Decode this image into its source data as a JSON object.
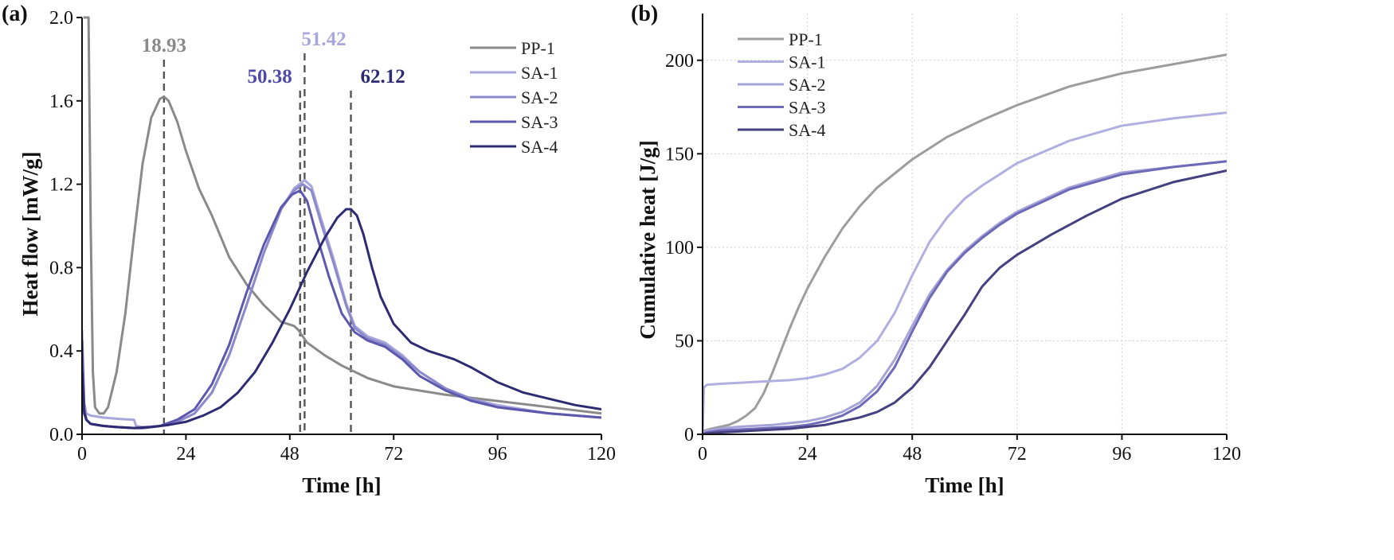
{
  "chart_data": [
    {
      "panel": "(a)",
      "type": "line",
      "xlabel": "Time [h]",
      "ylabel": "Heat flow [mW/g]",
      "xlim": [
        0,
        120
      ],
      "ylim": [
        0,
        2.0
      ],
      "xticks": [
        0,
        24,
        48,
        72,
        96,
        120
      ],
      "yticks": [
        0.0,
        0.4,
        0.8,
        1.2,
        1.6,
        2.0
      ],
      "ytick_labels": [
        "0.0",
        "0.4",
        "0.8",
        "1.2",
        "1.6",
        "2.0"
      ],
      "grid": false,
      "legend_position": "top-right",
      "series": [
        {
          "name": "PP-1",
          "color": "#8a8a8a",
          "x": [
            0.3,
            1.0,
            1.5,
            2.0,
            2.5,
            3.0,
            4.0,
            5.0,
            6.0,
            8.0,
            10.0,
            12.0,
            14.0,
            16.0,
            18.0,
            18.93,
            20.0,
            22.0,
            24.0,
            27.0,
            30.0,
            34.0,
            38.0,
            42.0,
            46.0,
            49.0,
            50.0,
            52.0,
            56.0,
            60.0,
            66.0,
            72.0,
            84.0,
            96.0,
            108.0,
            120.0
          ],
          "y": [
            2.0,
            2.0,
            2.0,
            1.0,
            0.3,
            0.13,
            0.1,
            0.1,
            0.13,
            0.3,
            0.58,
            0.95,
            1.3,
            1.52,
            1.61,
            1.62,
            1.6,
            1.5,
            1.36,
            1.18,
            1.05,
            0.85,
            0.72,
            0.62,
            0.54,
            0.52,
            0.5,
            0.44,
            0.38,
            0.33,
            0.27,
            0.23,
            0.19,
            0.16,
            0.13,
            0.1
          ]
        },
        {
          "name": "SA-1",
          "color": "#a8a6db",
          "x": [
            0.0,
            0.5,
            1.0,
            2.0,
            5.0,
            8.0,
            10.0,
            12.0,
            12.5,
            14.0,
            18.0,
            22.0,
            26.0,
            30.0,
            34.0,
            38.0,
            42.0,
            46.0,
            49.0,
            51.42,
            53.0,
            55.0,
            58.0,
            61.0,
            63.0,
            66.0,
            70.0,
            74.0,
            78.0,
            84.0,
            90.0,
            96.0,
            108.0,
            120.0
          ],
          "y": [
            0.5,
            0.15,
            0.1,
            0.09,
            0.08,
            0.075,
            0.072,
            0.07,
            0.04,
            0.035,
            0.04,
            0.06,
            0.1,
            0.2,
            0.38,
            0.62,
            0.87,
            1.08,
            1.18,
            1.22,
            1.19,
            1.05,
            0.85,
            0.63,
            0.52,
            0.47,
            0.44,
            0.38,
            0.3,
            0.22,
            0.17,
            0.14,
            0.1,
            0.08
          ]
        },
        {
          "name": "SA-2",
          "color": "#8c89cc",
          "x": [
            0.0,
            0.5,
            1.0,
            2.0,
            5.0,
            8.0,
            12.0,
            14.0,
            18.0,
            22.0,
            26.0,
            30.0,
            34.0,
            38.0,
            42.0,
            46.0,
            49.0,
            51.0,
            53.0,
            55.0,
            58.0,
            61.0,
            63.0,
            66.0,
            70.0,
            74.0,
            78.0,
            84.0,
            90.0,
            96.0,
            108.0,
            120.0
          ],
          "y": [
            0.45,
            0.12,
            0.07,
            0.05,
            0.04,
            0.035,
            0.03,
            0.03,
            0.04,
            0.06,
            0.1,
            0.2,
            0.38,
            0.62,
            0.87,
            1.08,
            1.17,
            1.2,
            1.17,
            1.03,
            0.83,
            0.62,
            0.51,
            0.46,
            0.43,
            0.37,
            0.3,
            0.22,
            0.17,
            0.13,
            0.1,
            0.08
          ]
        },
        {
          "name": "SA-3",
          "color": "#5d58ad",
          "x": [
            0.0,
            0.5,
            1.0,
            2.0,
            5.0,
            8.0,
            12.0,
            14.0,
            18.0,
            22.0,
            26.0,
            30.0,
            34.0,
            38.0,
            42.0,
            46.0,
            48.5,
            50.38,
            52.0,
            54.0,
            57.0,
            60.0,
            63.0,
            66.0,
            70.0,
            74.0,
            78.0,
            84.0,
            90.0,
            96.0,
            108.0,
            120.0
          ],
          "y": [
            0.45,
            0.12,
            0.07,
            0.05,
            0.04,
            0.035,
            0.03,
            0.03,
            0.04,
            0.07,
            0.12,
            0.24,
            0.43,
            0.68,
            0.91,
            1.09,
            1.15,
            1.17,
            1.12,
            0.97,
            0.76,
            0.58,
            0.49,
            0.45,
            0.42,
            0.36,
            0.28,
            0.21,
            0.16,
            0.13,
            0.1,
            0.08
          ]
        },
        {
          "name": "SA-4",
          "color": "#2f2b72",
          "x": [
            0.0,
            0.5,
            1.0,
            2.0,
            5.0,
            8.0,
            12.0,
            16.0,
            20.0,
            24.0,
            28.0,
            32.0,
            36.0,
            40.0,
            44.0,
            48.0,
            52.0,
            56.0,
            59.0,
            61.0,
            62.12,
            63.5,
            65.0,
            67.0,
            69.0,
            72.0,
            76.0,
            80.0,
            86.0,
            90.0,
            96.0,
            102.0,
            108.0,
            114.0,
            120.0
          ],
          "y": [
            0.3,
            0.1,
            0.07,
            0.05,
            0.04,
            0.035,
            0.03,
            0.035,
            0.045,
            0.06,
            0.09,
            0.13,
            0.2,
            0.3,
            0.44,
            0.6,
            0.78,
            0.94,
            1.04,
            1.08,
            1.08,
            1.05,
            0.96,
            0.8,
            0.66,
            0.53,
            0.44,
            0.4,
            0.36,
            0.32,
            0.25,
            0.2,
            0.17,
            0.14,
            0.12
          ]
        }
      ],
      "annotations": [
        {
          "text": "18.93",
          "x": 18.93,
          "color": "#8a8a8a"
        },
        {
          "text": "50.38",
          "x": 50.38,
          "color": "#4f4aa8"
        },
        {
          "text": "51.42",
          "x": 51.42,
          "color": "#a8a6db"
        },
        {
          "text": "62.12",
          "x": 62.12,
          "color": "#2f2b72"
        }
      ]
    },
    {
      "panel": "(b)",
      "type": "line",
      "xlabel": "Time [h]",
      "ylabel": "Cumulative heat [J/g]",
      "xlim": [
        0,
        120
      ],
      "ylim": [
        0,
        225
      ],
      "xticks": [
        0,
        24,
        48,
        72,
        96,
        120
      ],
      "yticks": [
        0,
        50,
        100,
        150,
        200
      ],
      "ytick_labels": [
        "0",
        "50",
        "100",
        "150",
        "200"
      ],
      "grid": true,
      "legend_position": "top-left",
      "series": [
        {
          "name": "PP-1",
          "color": "#9d9d9d",
          "x": [
            0,
            0.5,
            2,
            4,
            6,
            8,
            10,
            12,
            14,
            16,
            18,
            20,
            22,
            24,
            28,
            32,
            36,
            40,
            48,
            56,
            64,
            72,
            84,
            96,
            108,
            120
          ],
          "y": [
            0,
            2,
            3,
            4,
            5,
            7,
            10,
            14,
            22,
            33,
            45,
            57,
            68,
            78,
            95,
            110,
            122,
            132,
            147,
            159,
            168,
            176,
            186,
            193,
            198,
            203
          ]
        },
        {
          "name": "SA-1",
          "color": "#b1afe0",
          "x": [
            0,
            0.3,
            1,
            4,
            8,
            12,
            16,
            20,
            24,
            28,
            32,
            36,
            40,
            44,
            48,
            52,
            56,
            60,
            64,
            68,
            72,
            84,
            96,
            108,
            120
          ],
          "y": [
            0,
            25,
            26.5,
            27,
            27.5,
            28,
            28.5,
            29,
            30,
            32,
            35,
            41,
            50,
            65,
            85,
            103,
            116,
            126,
            133,
            139,
            145,
            157,
            165,
            169,
            172
          ]
        },
        {
          "name": "SA-2",
          "color": "#a6a3d8",
          "x": [
            0,
            1,
            4,
            8,
            12,
            16,
            20,
            24,
            28,
            32,
            36,
            40,
            44,
            48,
            52,
            56,
            60,
            64,
            68,
            72,
            84,
            96,
            108,
            120
          ],
          "y": [
            0,
            2,
            3,
            4,
            4.5,
            5,
            6,
            7,
            9,
            12,
            17,
            26,
            40,
            58,
            75,
            88,
            98,
            106,
            113,
            119,
            132,
            140,
            143,
            146
          ]
        },
        {
          "name": "SA-3",
          "color": "#6e6ab8",
          "x": [
            0,
            1,
            4,
            8,
            12,
            16,
            20,
            24,
            28,
            32,
            36,
            40,
            44,
            48,
            52,
            56,
            60,
            64,
            68,
            72,
            84,
            96,
            108,
            120
          ],
          "y": [
            0,
            1,
            2,
            2.5,
            3,
            3.5,
            4,
            5,
            7,
            10,
            15,
            23,
            36,
            55,
            73,
            87,
            97,
            105,
            112,
            118,
            131,
            139,
            143,
            146
          ]
        },
        {
          "name": "SA-4",
          "color": "#45407f",
          "x": [
            0,
            1,
            4,
            8,
            12,
            16,
            20,
            24,
            28,
            32,
            36,
            40,
            44,
            48,
            52,
            56,
            60,
            64,
            68,
            72,
            80,
            88,
            96,
            108,
            120
          ],
          "y": [
            0,
            0.5,
            1,
            1.5,
            2,
            2.5,
            3,
            4,
            5,
            7,
            9,
            12,
            17,
            25,
            36,
            50,
            64,
            79,
            89,
            96,
            107,
            117,
            126,
            135,
            141
          ]
        }
      ]
    }
  ]
}
